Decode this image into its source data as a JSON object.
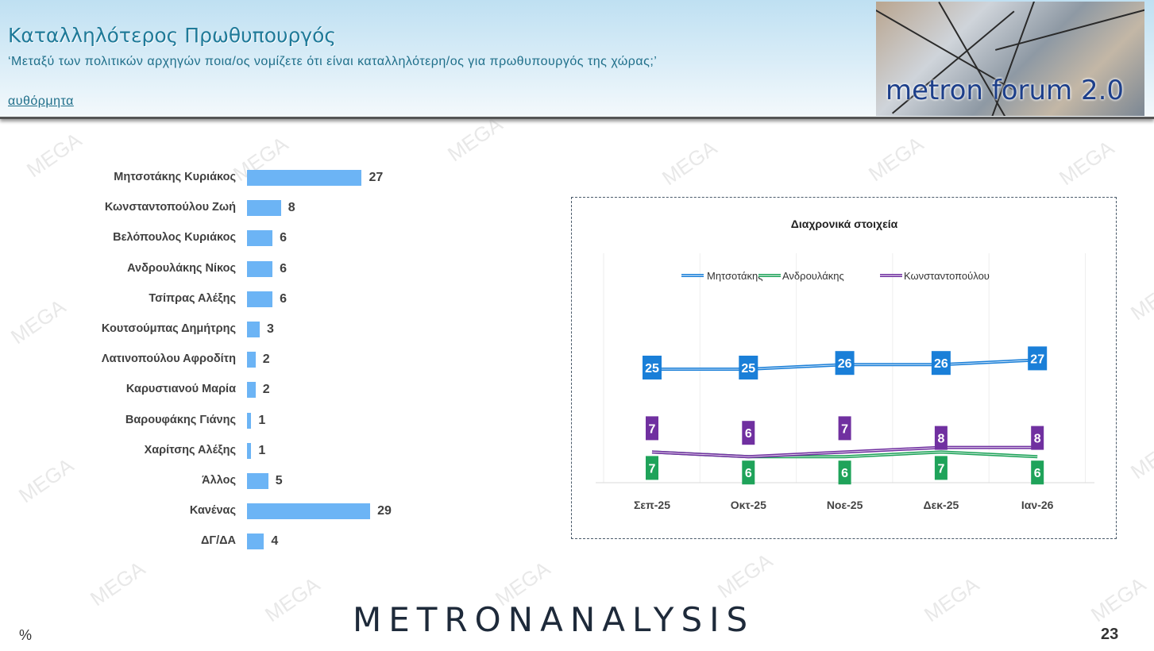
{
  "header": {
    "title": "Καταλληλότερος Πρωθυπουργός",
    "question": "‘Μεταξύ των πολιτικών αρχηγών ποια/ος νομίζετε ότι είναι καταλληλότερη/ος για πρωθυπουργός της χώρας;’",
    "note": "αυθόρμητα",
    "logo_text": "metron forum 2.0"
  },
  "watermark": "MEGA",
  "chart_data": [
    {
      "type": "bar",
      "orientation": "horizontal",
      "categories": [
        "Μητσοτάκης Κυριάκος",
        "Κωνσταντοπούλου Ζωή",
        "Βελόπουλος Κυριάκος",
        "Ανδρουλάκης Νίκος",
        "Τσίπρας Αλέξης",
        "Κουτσούμπας Δημήτρης",
        "Λατινοπούλου Αφροδίτη",
        "Καρυστιανού Μαρία",
        "Βαρουφάκης Γιάνης",
        "Χαρίτσης Αλέξης",
        "Άλλος",
        "Κανένας",
        "ΔΓ/ΔΑ"
      ],
      "values": [
        27,
        8,
        6,
        6,
        6,
        3,
        2,
        2,
        1,
        1,
        5,
        29,
        4
      ],
      "color": "#6cb4f5",
      "unit": "%"
    },
    {
      "type": "line",
      "title": "Διαχρονικά στοιχεία",
      "categories": [
        "Σεπ-25",
        "Οκτ-25",
        "Νοε-25",
        "Δεκ-25",
        "Ιαν-26"
      ],
      "series": [
        {
          "name": "Μητσοτάκης",
          "values": [
            25,
            25,
            26,
            26,
            27
          ],
          "color": "#1a7fd8"
        },
        {
          "name": "Ανδρουλάκης",
          "values": [
            7,
            6,
            6,
            7,
            6
          ],
          "color": "#1fa35a"
        },
        {
          "name": "Κωνσταντοπούλου",
          "values": [
            7,
            6,
            7,
            8,
            8
          ],
          "color": "#7030a0"
        }
      ],
      "legend": "top",
      "grid": "vertical"
    }
  ],
  "footer": {
    "brand": "METRONANALYSIS",
    "unit": "%",
    "page": "23"
  }
}
